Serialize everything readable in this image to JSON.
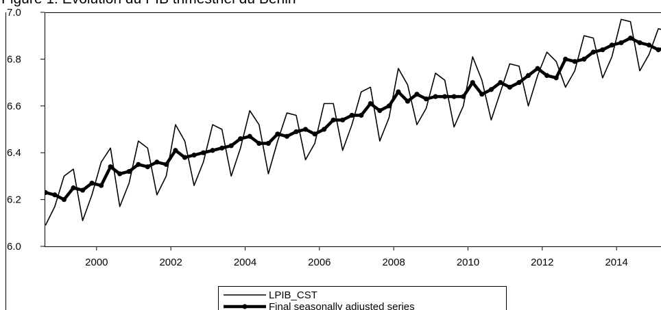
{
  "chart_data": {
    "type": "line",
    "title": "Figure 1: Evolution du PIB trimestriel du Benin",
    "x": [
      1999.125,
      1999.375,
      1999.625,
      1999.875,
      2000.125,
      2000.375,
      2000.625,
      2000.875,
      2001.125,
      2001.375,
      2001.625,
      2001.875,
      2002.125,
      2002.375,
      2002.625,
      2002.875,
      2003.125,
      2003.375,
      2003.625,
      2003.875,
      2004.125,
      2004.375,
      2004.625,
      2004.875,
      2005.125,
      2005.375,
      2005.625,
      2005.875,
      2006.125,
      2006.375,
      2006.625,
      2006.875,
      2007.125,
      2007.375,
      2007.625,
      2007.875,
      2008.125,
      2008.375,
      2008.625,
      2008.875,
      2009.125,
      2009.375,
      2009.625,
      2009.875,
      2010.125,
      2010.375,
      2010.625,
      2010.875,
      2011.125,
      2011.375,
      2011.625,
      2011.875,
      2012.125,
      2012.375,
      2012.625,
      2012.875,
      2013.125,
      2013.375,
      2013.625,
      2013.875,
      2014.125,
      2014.375,
      2014.625,
      2014.875,
      2015.125,
      2015.375,
      2015.625,
      2015.875
    ],
    "series": [
      {
        "name": "LPIB_CST",
        "color": "#000000",
        "values": [
          6.09,
          6.17,
          6.3,
          6.33,
          6.11,
          6.22,
          6.36,
          6.42,
          6.17,
          6.27,
          6.45,
          6.42,
          6.22,
          6.3,
          6.52,
          6.45,
          6.26,
          6.36,
          6.52,
          6.5,
          6.3,
          6.42,
          6.58,
          6.52,
          6.31,
          6.45,
          6.57,
          6.56,
          6.37,
          6.44,
          6.61,
          6.61,
          6.41,
          6.52,
          6.66,
          6.68,
          6.45,
          6.55,
          6.76,
          6.69,
          6.52,
          6.59,
          6.74,
          6.71,
          6.51,
          6.6,
          6.81,
          6.71,
          6.54,
          6.66,
          6.78,
          6.77,
          6.6,
          6.73,
          6.83,
          6.79,
          6.68,
          6.75,
          6.9,
          6.89,
          6.72,
          6.81,
          6.97,
          6.96,
          6.75,
          6.82,
          6.93,
          6.92
        ]
      },
      {
        "name": "Final seasonally adjusted series",
        "color": "#000000",
        "values": [
          6.23,
          6.22,
          6.2,
          6.25,
          6.24,
          6.27,
          6.26,
          6.34,
          6.31,
          6.32,
          6.35,
          6.34,
          6.36,
          6.35,
          6.41,
          6.38,
          6.39,
          6.4,
          6.41,
          6.42,
          6.43,
          6.46,
          6.47,
          6.44,
          6.44,
          6.48,
          6.47,
          6.49,
          6.5,
          6.48,
          6.5,
          6.54,
          6.54,
          6.56,
          6.56,
          6.61,
          6.58,
          6.6,
          6.66,
          6.62,
          6.65,
          6.63,
          6.64,
          6.64,
          6.64,
          6.64,
          6.7,
          6.65,
          6.67,
          6.7,
          6.68,
          6.7,
          6.73,
          6.76,
          6.73,
          6.72,
          6.8,
          6.79,
          6.8,
          6.83,
          6.84,
          6.86,
          6.87,
          6.89,
          6.87,
          6.86,
          6.84,
          6.85
        ]
      }
    ],
    "xlim": [
      1999.1,
      2015.9
    ],
    "xticks": [
      {
        "value": 2000.5,
        "label": "2000"
      },
      {
        "value": 2002.5,
        "label": "2002"
      },
      {
        "value": 2004.5,
        "label": "2004"
      },
      {
        "value": 2006.5,
        "label": "2006"
      },
      {
        "value": 2008.5,
        "label": "2008"
      },
      {
        "value": 2010.5,
        "label": "2010"
      },
      {
        "value": 2012.5,
        "label": "2012"
      },
      {
        "value": 2014.5,
        "label": "2014"
      }
    ],
    "ylim": [
      6.0,
      7.0
    ],
    "yticks": [
      {
        "value": 6.0,
        "label": "6.0"
      },
      6.2,
      6.4,
      6.6,
      6.8,
      {
        "value": 7.0,
        "label": "7.0"
      }
    ],
    "grid": false
  }
}
